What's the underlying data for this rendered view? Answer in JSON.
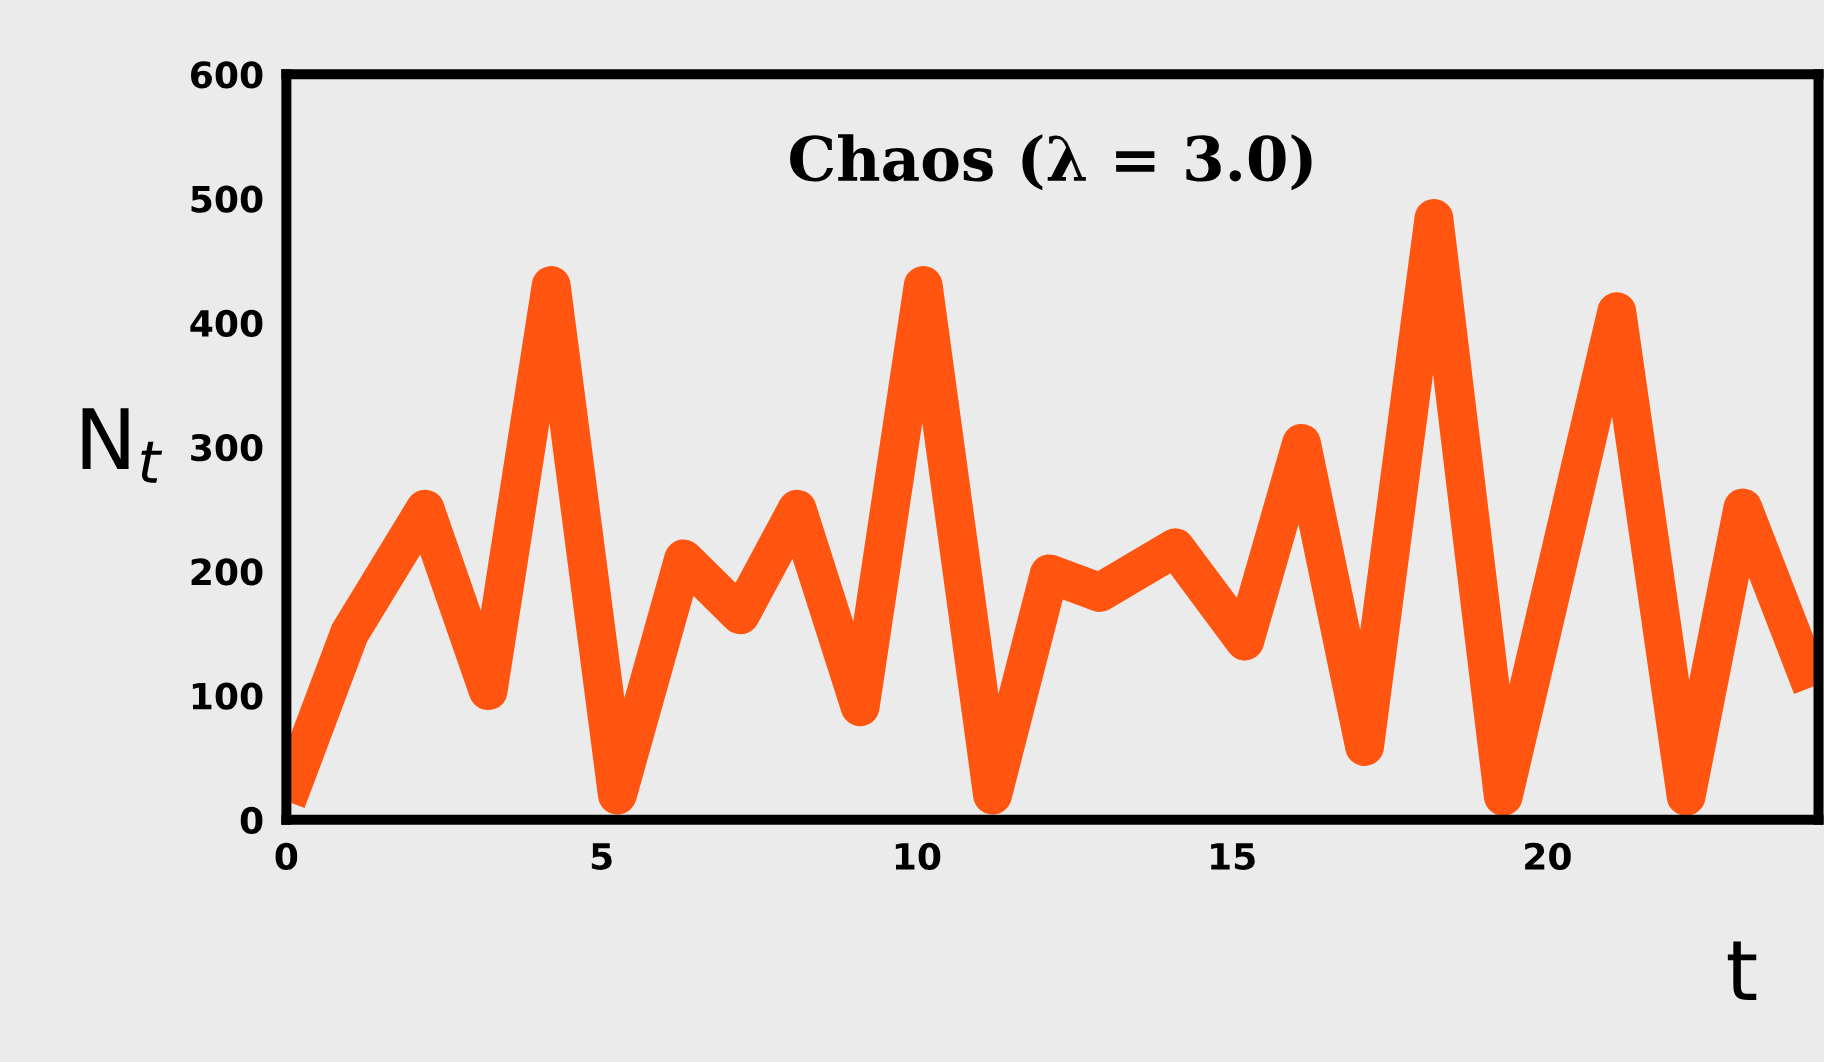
{
  "chart_data": {
    "type": "line",
    "title": "Chaos (λ = 3.0)",
    "xlabel": "t",
    "ylabel": "N$_{t}$",
    "x": [
      0,
      1.0,
      2.2,
      3.2,
      4.2,
      5.25,
      6.3,
      7.2,
      8.1,
      9.1,
      10.1,
      11.2,
      12.1,
      12.9,
      14.1,
      15.2,
      16.1,
      17.1,
      18.2,
      19.3,
      21.1,
      22.2,
      23.1,
      24.2
    ],
    "series": [
      {
        "color": "#ff5511",
        "values": [
          15,
          150,
          250,
          104,
          430,
          20,
          210,
          165,
          250,
          91,
          430,
          20,
          198,
          183,
          219,
          144,
          303,
          59,
          484,
          19,
          409,
          19,
          251,
          107
        ]
      }
    ],
    "xlim": [
      0,
      24.3
    ],
    "ylim": [
      0,
      600
    ],
    "xticks": [
      0,
      5,
      10,
      15,
      20
    ],
    "yticks": [
      0,
      100,
      200,
      300,
      400,
      500,
      600
    ],
    "grid": false,
    "legend": false,
    "marker": "none",
    "line_style": "solid"
  }
}
